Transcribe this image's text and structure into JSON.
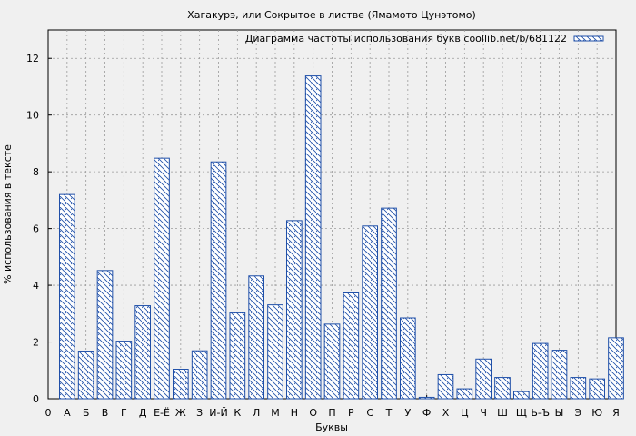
{
  "chart_data": {
    "type": "bar",
    "title": "Хагакурэ, или Сокрытое в листве (Ямамото Цунэтомо)",
    "xlabel": "Буквы",
    "ylabel": "% использования в тексте",
    "legend": {
      "label": "Диаграмма частоты использования букв coollib.net/b/681122",
      "position": "top-right"
    },
    "x_tick_labels": [
      "0",
      "А",
      "Б",
      "В",
      "Г",
      "Д",
      "Е-Ё",
      "Ж",
      "З",
      "И-Й",
      "К",
      "Л",
      "М",
      "Н",
      "О",
      "П",
      "Р",
      "С",
      "Т",
      "У",
      "Ф",
      "Х",
      "Ц",
      "Ч",
      "Ш",
      "Щ",
      "Ь-Ъ",
      "Ы",
      "Э",
      "Ю",
      "Я"
    ],
    "categories": [
      "А",
      "Б",
      "В",
      "Г",
      "Д",
      "Е-Ё",
      "Ж",
      "З",
      "И-Й",
      "К",
      "Л",
      "М",
      "Н",
      "О",
      "П",
      "Р",
      "С",
      "Т",
      "У",
      "Ф",
      "Х",
      "Ц",
      "Ч",
      "Ш",
      "Щ",
      "Ь-Ъ",
      "Ы",
      "Э",
      "Ю",
      "Я"
    ],
    "values": [
      7.2,
      1.68,
      4.52,
      2.03,
      3.28,
      8.48,
      1.04,
      1.69,
      8.35,
      3.03,
      4.33,
      3.31,
      6.28,
      11.38,
      2.63,
      3.73,
      6.09,
      6.72,
      2.85,
      0.05,
      0.85,
      0.35,
      1.4,
      0.75,
      0.25,
      1.95,
      1.71,
      0.75,
      0.7,
      2.15
    ],
    "y_ticks": [
      "0",
      "2",
      "4",
      "6",
      "8",
      "10",
      "12"
    ],
    "ylim": [
      0,
      13
    ],
    "grid": true,
    "bar_color": "#1f4fa8"
  }
}
